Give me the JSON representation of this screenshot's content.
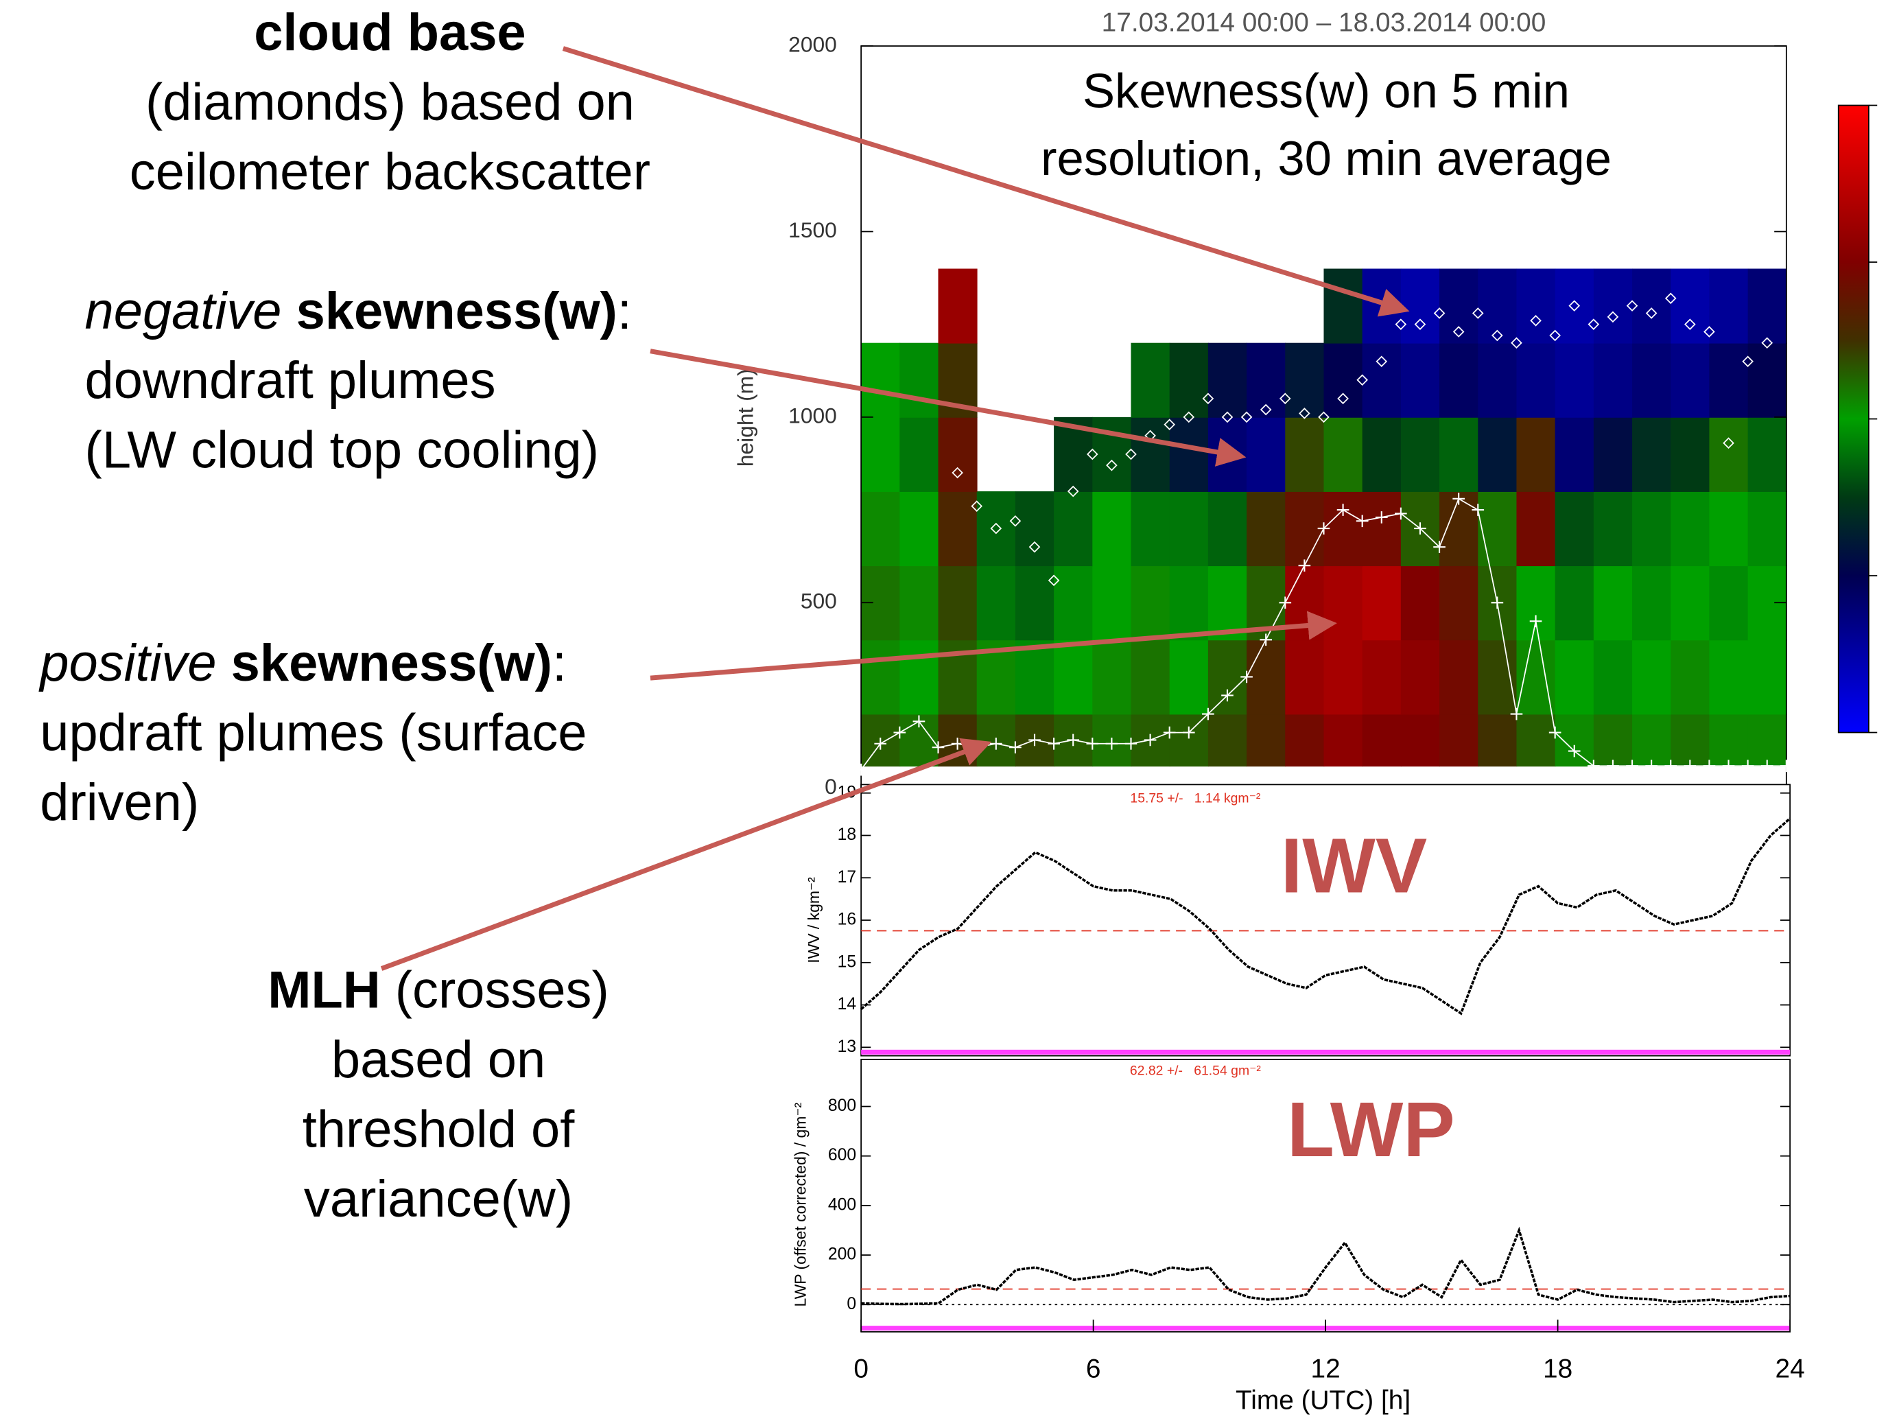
{
  "annotations": [
    {
      "anchor": "middle",
      "lines": [
        [
          {
            "text": "cloud base",
            "style": "bold"
          }
        ],
        [
          {
            "text": "(diamonds) based on"
          }
        ],
        [
          {
            "text": "ceilometer backscatter"
          }
        ]
      ]
    },
    {
      "anchor": "start",
      "lines": [
        [
          {
            "text": "negative",
            "style": "italic"
          },
          {
            "text": " skewness(w)",
            "style": "bold"
          },
          {
            "text": ":"
          }
        ],
        [
          {
            "text": "downdraft plumes"
          }
        ],
        [
          {
            "text": "(LW cloud top cooling)"
          }
        ]
      ]
    },
    {
      "anchor": "start",
      "lines": [
        [
          {
            "text": "positive",
            "style": "italic"
          },
          {
            "text": " skewness(w)",
            "style": "bold"
          },
          {
            "text": ":"
          }
        ],
        [
          {
            "text": "updraft plumes (surface"
          }
        ],
        [
          {
            "text": "driven)"
          }
        ]
      ]
    },
    {
      "anchor": "middle",
      "lines": [
        [
          {
            "text": "MLH",
            "style": "bold"
          },
          {
            "text": " (crosses)"
          }
        ],
        [
          {
            "text": "based on"
          }
        ],
        [
          {
            "text": "threshold of"
          }
        ],
        [
          {
            "text": "variance(w)"
          }
        ]
      ]
    }
  ],
  "chart_data": [
    {
      "type": "heatmap",
      "title": "17.03.2014 00:00 – 18.03.2014 00:00",
      "annotation_lines": [
        "Skewness(w) on 5 min",
        "resolution, 30 min average"
      ],
      "ylabel": "height (m)",
      "xlim": [
        0,
        24
      ],
      "ylim": [
        0,
        2000
      ],
      "yticks": [
        0,
        500,
        1000,
        1500,
        2000
      ],
      "xbins": [
        0,
        1,
        2,
        3,
        4,
        5,
        6,
        7,
        8,
        9,
        10,
        11,
        12,
        13,
        14,
        15,
        16,
        17,
        18,
        19,
        20,
        21,
        22,
        23,
        24
      ],
      "ybins": [
        60,
        200,
        400,
        600,
        800,
        1000,
        1200,
        1400
      ],
      "z": [
        [
          0.3,
          0.2,
          0.5,
          0.3,
          0.4,
          0.3,
          0.2,
          0.3,
          0.3,
          0.4,
          0.6,
          0.9,
          1.1,
          1.0,
          1.0,
          0.9,
          0.5,
          0.3,
          0.1,
          0.2,
          0.1,
          0.2,
          0.1,
          0.1
        ],
        [
          0.1,
          0.0,
          0.3,
          0.1,
          -0.1,
          0.0,
          0.1,
          0.2,
          0.0,
          0.3,
          0.6,
          1.2,
          1.3,
          1.2,
          1.1,
          0.9,
          0.4,
          0.1,
          0.0,
          -0.1,
          0.0,
          0.1,
          0.0,
          0.0
        ],
        [
          0.2,
          0.1,
          0.4,
          -0.2,
          -0.3,
          -0.1,
          0.0,
          0.1,
          -0.1,
          0.0,
          0.3,
          1.2,
          1.3,
          1.4,
          1.0,
          0.8,
          0.3,
          0.0,
          -0.2,
          0.0,
          -0.1,
          0.0,
          -0.1,
          0.0
        ],
        [
          0.1,
          0.0,
          0.6,
          -0.3,
          -0.4,
          -0.3,
          0.0,
          -0.2,
          -0.2,
          -0.3,
          0.5,
          0.8,
          0.9,
          0.9,
          0.3,
          0.6,
          0.2,
          0.9,
          -0.4,
          -0.3,
          -0.2,
          -0.1,
          0.0,
          -0.1
        ],
        [
          0.0,
          -0.2,
          0.8,
          null,
          null,
          -0.5,
          -0.4,
          -0.6,
          -0.8,
          -1.2,
          -1.3,
          0.4,
          0.2,
          -0.5,
          -0.4,
          -0.3,
          -0.8,
          0.6,
          -1.2,
          -0.9,
          -0.6,
          -0.5,
          0.2,
          -0.3
        ],
        [
          0.0,
          -0.1,
          0.5,
          null,
          null,
          null,
          null,
          -0.3,
          -0.5,
          -0.9,
          -1.1,
          -0.8,
          -1.0,
          -1.2,
          -1.3,
          -1.1,
          -1.2,
          -1.3,
          -1.4,
          -1.3,
          -1.2,
          -1.3,
          -1.1,
          -1.0
        ],
        [
          null,
          null,
          1.2,
          null,
          null,
          null,
          null,
          null,
          null,
          null,
          null,
          null,
          -0.6,
          -1.4,
          -1.5,
          -1.2,
          -1.3,
          -1.4,
          -1.5,
          -1.4,
          -1.3,
          -1.5,
          -1.4,
          -1.2
        ]
      ],
      "clim": [
        -2,
        2
      ],
      "cticks": [
        -2,
        -1,
        0,
        1,
        2
      ],
      "colormap": [
        {
          "value": -2,
          "color": "#0000ff"
        },
        {
          "value": -1,
          "color": "#000050"
        },
        {
          "value": -0.5,
          "color": "#003a14"
        },
        {
          "value": 0,
          "color": "#00a000"
        },
        {
          "value": 0.5,
          "color": "#403000"
        },
        {
          "value": 1,
          "color": "#800000"
        },
        {
          "value": 2,
          "color": "#ff0000"
        }
      ],
      "cloud_base": {
        "marker": "diamond",
        "color": "#ffffff",
        "x": [
          2.5,
          3,
          3.5,
          4,
          4.5,
          5,
          5.5,
          6,
          6.5,
          7,
          7.5,
          8,
          8.5,
          9,
          9.5,
          10,
          10.5,
          11,
          11.5,
          12,
          12.5,
          13,
          13.5,
          14,
          14.5,
          15,
          15.5,
          16,
          16.5,
          17,
          17.5,
          18,
          18.5,
          19,
          19.5,
          20,
          20.5,
          21,
          21.5,
          22,
          22.5,
          23,
          23.5
        ],
        "y": [
          850,
          760,
          700,
          720,
          650,
          560,
          800,
          900,
          870,
          900,
          950,
          980,
          1000,
          1050,
          1000,
          1000,
          1020,
          1050,
          1010,
          1000,
          1050,
          1100,
          1150,
          1250,
          1250,
          1280,
          1230,
          1280,
          1220,
          1200,
          1260,
          1220,
          1300,
          1250,
          1270,
          1300,
          1280,
          1320,
          1250,
          1230,
          930,
          1150,
          1200
        ]
      },
      "mlh": {
        "marker": "cross",
        "color": "#ffffff",
        "x": [
          0,
          0.5,
          1,
          1.5,
          2,
          2.5,
          3,
          3.5,
          4,
          4.5,
          5,
          5.5,
          6,
          6.5,
          7,
          7.5,
          8,
          8.5,
          9,
          9.5,
          10,
          10.5,
          11,
          11.5,
          12,
          12.5,
          13,
          13.5,
          14,
          14.5,
          15,
          15.5,
          16,
          16.5,
          17,
          17.5,
          18,
          18.5,
          19,
          19.5,
          20,
          20.5,
          21,
          21.5,
          22,
          22.5,
          23,
          23.5,
          24
        ],
        "y": [
          50,
          120,
          150,
          180,
          110,
          120,
          110,
          120,
          110,
          130,
          120,
          130,
          120,
          120,
          120,
          130,
          150,
          150,
          200,
          250,
          300,
          400,
          500,
          600,
          700,
          750,
          720,
          730,
          740,
          700,
          650,
          780,
          750,
          500,
          200,
          450,
          150,
          100,
          60,
          60,
          60,
          60,
          60,
          60,
          60,
          60,
          60,
          60,
          60
        ]
      }
    },
    {
      "type": "timeseries",
      "label": "IWV",
      "ylabel": "IWV / kgm⁻²",
      "color": "#000000",
      "mean": 15.75,
      "mean_label": "15.75 +/-   1.14 kgm⁻²",
      "xlim": [
        0,
        24
      ],
      "ylim": [
        12.8,
        19.2
      ],
      "yticks": [
        13,
        14,
        15,
        16,
        17,
        18,
        19
      ],
      "x": [
        0,
        0.5,
        1,
        1.5,
        2,
        2.5,
        3,
        3.5,
        4,
        4.5,
        5,
        5.5,
        6,
        6.5,
        7,
        7.5,
        8,
        8.5,
        9,
        9.5,
        10,
        10.5,
        11,
        11.5,
        12,
        12.5,
        13,
        13.5,
        14,
        14.5,
        15,
        15.5,
        16,
        16.5,
        17,
        17.5,
        18,
        18.5,
        19,
        19.5,
        20,
        20.5,
        21,
        21.5,
        22,
        22.5,
        23,
        23.5,
        24
      ],
      "values": [
        13.9,
        14.3,
        14.8,
        15.3,
        15.6,
        15.8,
        16.3,
        16.8,
        17.2,
        17.6,
        17.4,
        17.1,
        16.8,
        16.7,
        16.7,
        16.6,
        16.5,
        16.2,
        15.8,
        15.3,
        14.9,
        14.7,
        14.5,
        14.4,
        14.7,
        14.8,
        14.9,
        14.6,
        14.5,
        14.4,
        14.1,
        13.8,
        15.0,
        15.6,
        16.6,
        16.8,
        16.4,
        16.3,
        16.6,
        16.7,
        16.4,
        16.1,
        15.9,
        16.0,
        16.1,
        16.4,
        17.4,
        18.0,
        18.4
      ]
    },
    {
      "type": "timeseries",
      "label": "LWP",
      "ylabel": "LWP (offset corrected) / gm⁻²",
      "color": "#000000",
      "mean": 62.82,
      "mean_label": "62.82 +/-   61.54 gm⁻²",
      "zero_line": true,
      "xlim": [
        0,
        24
      ],
      "ylim": [
        -110,
        990
      ],
      "yticks": [
        0,
        200,
        400,
        600,
        800
      ],
      "xticks": [
        0,
        6,
        12,
        18,
        24
      ],
      "xlabel": "Time (UTC) [h]",
      "x": [
        0,
        0.5,
        1,
        1.5,
        2,
        2.5,
        3,
        3.5,
        4,
        4.5,
        5,
        5.5,
        6,
        6.5,
        7,
        7.5,
        8,
        8.5,
        9,
        9.5,
        10,
        10.5,
        11,
        11.5,
        12,
        12.5,
        13,
        13.5,
        14,
        14.5,
        15,
        15.5,
        16,
        16.5,
        17,
        17.5,
        18,
        18.5,
        19,
        19.5,
        20,
        20.5,
        21,
        21.5,
        22,
        22.5,
        23,
        23.5,
        24
      ],
      "values": [
        5,
        3,
        2,
        3,
        5,
        60,
        80,
        60,
        140,
        150,
        130,
        100,
        110,
        120,
        140,
        120,
        150,
        140,
        150,
        60,
        30,
        20,
        25,
        40,
        150,
        250,
        120,
        60,
        30,
        80,
        30,
        180,
        80,
        100,
        300,
        40,
        20,
        60,
        40,
        30,
        25,
        20,
        10,
        15,
        20,
        10,
        15,
        30,
        35
      ]
    }
  ]
}
